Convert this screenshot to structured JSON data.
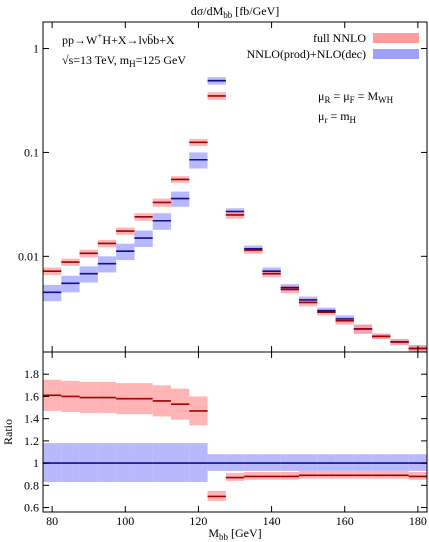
{
  "chart_data": [
    {
      "type": "histogram",
      "title": [
        "dσ/dM",
        {
          "sub": "bb"
        },
        " [fb/GeV]"
      ],
      "annotations": [
        [
          "pp→W",
          {
            "sup": "+"
          },
          "H+X→lνb̄b+X"
        ],
        [
          "√s=13 TeV, m",
          {
            "sub": "H"
          },
          "=125 GeV"
        ],
        [
          "μ",
          {
            "sub": "R"
          },
          " = μ",
          {
            "sub": "F"
          },
          " = M",
          {
            "sub": "WH"
          }
        ],
        [
          "μ",
          {
            "sub": "r"
          },
          " = m",
          {
            "sub": "H"
          }
        ]
      ],
      "log_y": true,
      "legend": "upper right",
      "bins": [
        77.5,
        82.5,
        87.5,
        92.5,
        97.5,
        102.5,
        107.5,
        112.5,
        117.5,
        122.5,
        127.5,
        132.5,
        137.5,
        142.5,
        147.5,
        152.5,
        157.5,
        162.5,
        167.5,
        172.5,
        177.5,
        182.5
      ],
      "xlim": [
        77.5,
        182.5
      ],
      "xticks": [
        80,
        100,
        120,
        140,
        160,
        180
      ],
      "ylim": [
        0.0012,
        1.8
      ],
      "yticks": [
        0.01,
        0.1,
        1
      ],
      "series": [
        {
          "name": "full NNLO",
          "color": "#a00000",
          "band_color": "#ff9c9c",
          "values": [
            0.0072,
            0.0088,
            0.0107,
            0.0133,
            0.0175,
            0.024,
            0.033,
            0.055,
            0.125,
            0.35,
            0.025,
            0.0115,
            0.0068,
            0.0048,
            0.0036,
            0.0029,
            0.0024,
            0.002,
            0.0017,
            0.0015,
            0.0013
          ],
          "band_low": [
            0.0066,
            0.0081,
            0.0098,
            0.0122,
            0.0161,
            0.022,
            0.03,
            0.051,
            0.115,
            0.32,
            0.023,
            0.0106,
            0.0063,
            0.0044,
            0.0033,
            0.0027,
            0.0022,
            0.0018,
            0.0016,
            0.0014,
            0.0012
          ],
          "band_high": [
            0.0078,
            0.0095,
            0.0116,
            0.0144,
            0.0189,
            0.026,
            0.036,
            0.059,
            0.135,
            0.38,
            0.027,
            0.0124,
            0.0073,
            0.0052,
            0.0039,
            0.0031,
            0.0026,
            0.0022,
            0.0018,
            0.0016,
            0.0014
          ]
        },
        {
          "name": "NNLO(prod)+NLO(dec)",
          "color": "#10108c",
          "band_color": "#a0a0ff",
          "values": [
            0.0045,
            0.0055,
            0.0068,
            0.0085,
            0.0112,
            0.015,
            0.022,
            0.036,
            0.085,
            0.49,
            0.027,
            0.0118,
            0.0072,
            0.005,
            0.0038,
            0.003,
            0.0025,
            0.002,
            0.0017,
            0.0015,
            0.0013
          ],
          "band_low": [
            0.0037,
            0.0045,
            0.0056,
            0.007,
            0.0092,
            0.0123,
            0.018,
            0.03,
            0.07,
            0.45,
            0.025,
            0.0109,
            0.0066,
            0.0046,
            0.0035,
            0.0028,
            0.0023,
            0.0018,
            0.0016,
            0.0014,
            0.0012
          ],
          "band_high": [
            0.0053,
            0.0065,
            0.008,
            0.01,
            0.0132,
            0.0177,
            0.026,
            0.042,
            0.1,
            0.53,
            0.029,
            0.0127,
            0.0078,
            0.0054,
            0.0041,
            0.0032,
            0.0027,
            0.0022,
            0.0018,
            0.0016,
            0.0014
          ]
        }
      ]
    },
    {
      "type": "histogram",
      "x_label": [
        "M",
        {
          "sub": "bb"
        },
        " [GeV]"
      ],
      "y_label": "Ratio",
      "bins": [
        77.5,
        82.5,
        87.5,
        92.5,
        97.5,
        102.5,
        107.5,
        112.5,
        117.5,
        122.5,
        127.5,
        132.5,
        137.5,
        142.5,
        147.5,
        152.5,
        157.5,
        162.5,
        167.5,
        172.5,
        177.5,
        182.5
      ],
      "xlim": [
        77.5,
        182.5
      ],
      "xticks": [
        80,
        100,
        120,
        140,
        160,
        180
      ],
      "ylim": [
        0.56,
        2.0
      ],
      "yticks": [
        0.6,
        0.8,
        1,
        1.2,
        1.4,
        1.6,
        1.8
      ],
      "series": [
        {
          "color": "#a00000",
          "band_color": "#ff9c9c",
          "values": [
            1.61,
            1.6,
            1.59,
            1.59,
            1.58,
            1.58,
            1.56,
            1.53,
            1.47,
            0.7,
            0.87,
            0.88,
            0.88,
            0.88,
            0.89,
            0.89,
            0.89,
            0.89,
            0.89,
            0.89,
            0.88
          ],
          "band_low": [
            1.47,
            1.46,
            1.45,
            1.45,
            1.44,
            1.44,
            1.42,
            1.39,
            1.34,
            0.66,
            0.84,
            0.85,
            0.85,
            0.85,
            0.86,
            0.86,
            0.86,
            0.86,
            0.86,
            0.86,
            0.85
          ],
          "band_high": [
            1.75,
            1.74,
            1.73,
            1.73,
            1.72,
            1.72,
            1.7,
            1.67,
            1.6,
            0.75,
            0.91,
            0.92,
            0.92,
            0.92,
            0.93,
            0.93,
            0.93,
            0.93,
            0.93,
            0.93,
            0.92
          ]
        },
        {
          "color": "#10108c",
          "band_color": "#a0a0ff",
          "values": [
            1,
            1,
            1,
            1,
            1,
            1,
            1,
            1,
            1,
            1,
            1,
            1,
            1,
            1,
            1,
            1,
            1,
            1,
            1,
            1,
            1
          ],
          "band_low": [
            0.83,
            0.83,
            0.83,
            0.83,
            0.83,
            0.83,
            0.83,
            0.83,
            0.83,
            0.93,
            0.93,
            0.93,
            0.93,
            0.93,
            0.93,
            0.93,
            0.93,
            0.93,
            0.93,
            0.93,
            0.93
          ],
          "band_high": [
            1.18,
            1.18,
            1.18,
            1.18,
            1.18,
            1.18,
            1.18,
            1.18,
            1.18,
            1.08,
            1.08,
            1.08,
            1.08,
            1.08,
            1.08,
            1.08,
            1.08,
            1.08,
            1.08,
            1.08,
            1.08
          ]
        }
      ]
    }
  ]
}
